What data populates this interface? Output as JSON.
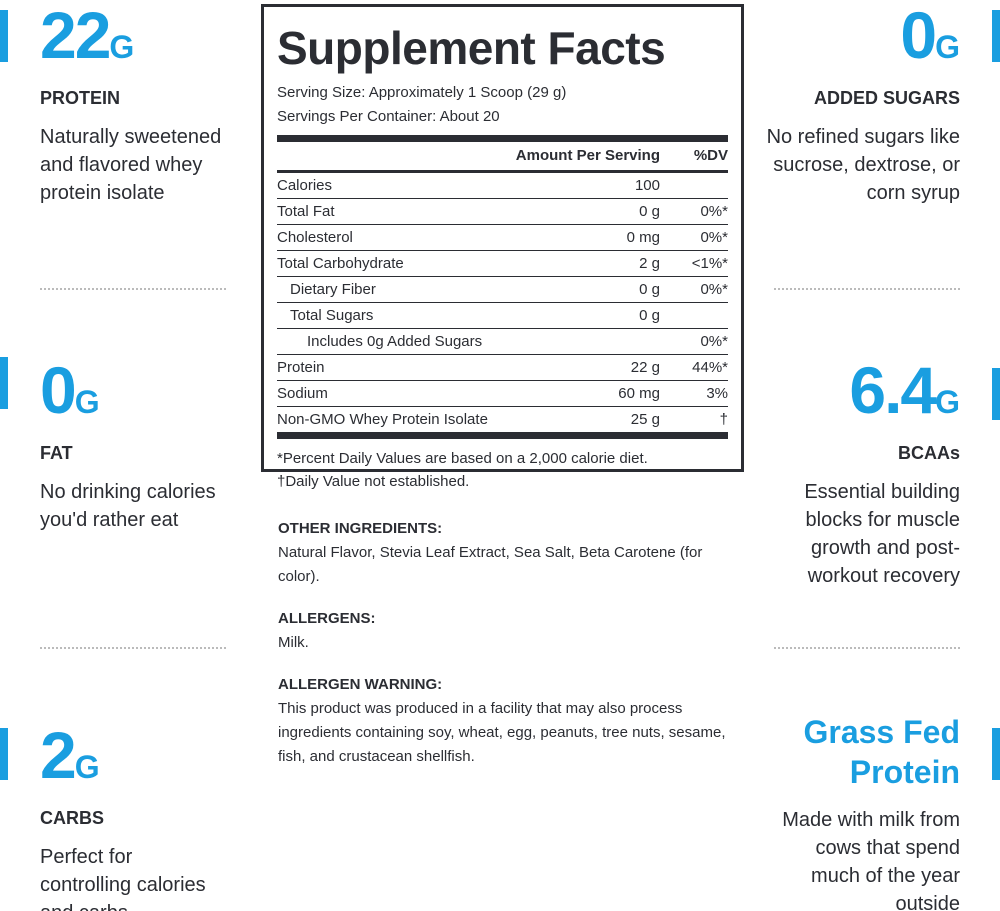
{
  "left_features": [
    {
      "value": "22",
      "unit": "G",
      "label": "PROTEIN",
      "text": "Naturally sweetened and flavored whey protein isolate"
    },
    {
      "value": "0",
      "unit": "G",
      "label": "FAT",
      "text": "No drinking calories you'd rather eat"
    },
    {
      "value": "2",
      "unit": "G",
      "label": "CARBS",
      "text": "Perfect for controlling calories and carbs"
    }
  ],
  "right_features": [
    {
      "value": "0",
      "unit": "G",
      "label": "ADDED SUGARS",
      "text": "No refined sugars like sucrose, dextrose, or corn syrup"
    },
    {
      "value": "6.4",
      "unit": "G",
      "label": "BCAAs",
      "text": "Essential building blocks for muscle growth and post-workout recovery"
    },
    {
      "title": "Grass Fed Protein",
      "text": "Made with milk from cows that spend much of the year outside"
    }
  ],
  "facts": {
    "title": "Supplement Facts",
    "serving_size": "Serving Size: Approximately 1 Scoop (29 g)",
    "servings": "Servings Per Container: About 20",
    "header": [
      "Amount Per Serving",
      "%DV"
    ],
    "rows": [
      [
        "Calories",
        "100",
        null
      ],
      [
        "Total Fat",
        "0 g",
        "0%*"
      ],
      [
        "Cholesterol",
        "0 mg",
        "0%*"
      ],
      [
        "Total Carbohydrate",
        "2 g",
        "<1%*"
      ],
      [
        "Dietary Fiber",
        "0 g",
        "0%*"
      ],
      [
        "Total Sugars",
        "0 g",
        null
      ],
      [
        "Includes 0g Added Sugars",
        null,
        "0%*"
      ],
      [
        "Protein",
        "22 g",
        "44%*"
      ],
      [
        "Sodium",
        "60 mg",
        "3%"
      ],
      [
        "Non-GMO Whey Protein Isolate",
        "25 g",
        "†"
      ]
    ],
    "footnotes": [
      "*Percent Daily Values are based on a 2,000 calorie diet.",
      "†Daily Value not established."
    ]
  },
  "sections": [
    {
      "heading": "OTHER INGREDIENTS:",
      "text": "Natural Flavor, Stevia Leaf Extract, Sea Salt, Beta Carotene (for color)."
    },
    {
      "heading": "ALLERGENS:",
      "text": "Milk."
    },
    {
      "heading": "ALLERGEN WARNING:",
      "text": "This product was produced in a facility that may also process ingredients containing soy, wheat, egg, peanuts, tree nuts, sesame, fish, and crustacean shellfish."
    }
  ]
}
